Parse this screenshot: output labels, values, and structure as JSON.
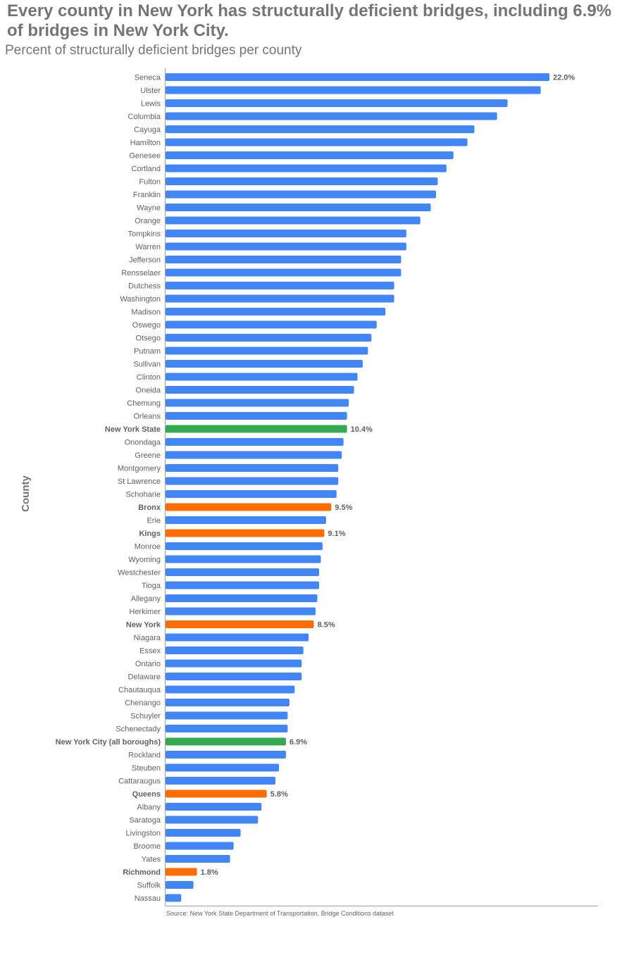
{
  "chart_data": {
    "type": "bar",
    "orientation": "horizontal",
    "title": "Every county in New York has structurally deficient bridges, including 6.9% of bridges in New York City.",
    "subtitle": "Percent of structurally deficient bridges per county",
    "ylabel": "County",
    "xlabel": "",
    "source": "Source: New York State Department of Transportation, Bridge Conditions dataset",
    "xlim": [
      0,
      24.8
    ],
    "grid": false,
    "colors": {
      "county": "#4285f4",
      "aggregate": "#34a853",
      "nyc_borough": "#ff6d00"
    },
    "categories": [
      "Seneca",
      "Ulster",
      "Lewis",
      "Columbia",
      "Cayuga",
      "Hamilton",
      "Genesee",
      "Cortland",
      "Fulton",
      "Franklin",
      "Wayne",
      "Orange",
      "Tompkins",
      "Warren",
      "Jefferson",
      "Rensselaer",
      "Dutchess",
      "Washington",
      "Madison",
      "Oswego",
      "Otsego",
      "Putnam",
      "Sullivan",
      "Clinton",
      "Oneida",
      "Chemung",
      "Orleans",
      "New York State",
      "Onondaga",
      "Greene",
      "Montgomery",
      "St Lawrence",
      "Schoharie",
      "Bronx",
      "Erie",
      "Kings",
      "Monroe",
      "Wyoming",
      "Westchester",
      "Tioga",
      "Allegany",
      "Herkimer",
      "New York",
      "Niagara",
      "Essex",
      "Ontario",
      "Delaware",
      "Chautauqua",
      "Chenango",
      "Schuyler",
      "Schenectady",
      "New York City (all boroughs)",
      "Rockland",
      "Steuben",
      "Cattaraugus",
      "Queens",
      "Albany",
      "Saratoga",
      "Livingston",
      "Broome",
      "Yates",
      "Richmond",
      "Suffolk",
      "Nassau"
    ],
    "values": [
      22.0,
      21.5,
      19.6,
      19.0,
      17.7,
      17.3,
      16.5,
      16.1,
      15.6,
      15.5,
      15.2,
      14.6,
      13.8,
      13.8,
      13.5,
      13.5,
      13.1,
      13.1,
      12.6,
      12.1,
      11.8,
      11.6,
      11.3,
      11.0,
      10.8,
      10.5,
      10.4,
      10.4,
      10.2,
      10.1,
      9.9,
      9.9,
      9.8,
      9.5,
      9.2,
      9.1,
      9.0,
      8.9,
      8.8,
      8.8,
      8.7,
      8.6,
      8.5,
      8.2,
      7.9,
      7.8,
      7.8,
      7.4,
      7.1,
      7.0,
      7.0,
      6.9,
      6.9,
      6.5,
      6.3,
      5.8,
      5.5,
      5.3,
      4.3,
      3.9,
      3.7,
      1.8,
      1.6,
      0.9
    ],
    "groups": [
      "county",
      "county",
      "county",
      "county",
      "county",
      "county",
      "county",
      "county",
      "county",
      "county",
      "county",
      "county",
      "county",
      "county",
      "county",
      "county",
      "county",
      "county",
      "county",
      "county",
      "county",
      "county",
      "county",
      "county",
      "county",
      "county",
      "county",
      "aggregate",
      "county",
      "county",
      "county",
      "county",
      "county",
      "nyc_borough",
      "county",
      "nyc_borough",
      "county",
      "county",
      "county",
      "county",
      "county",
      "county",
      "nyc_borough",
      "county",
      "county",
      "county",
      "county",
      "county",
      "county",
      "county",
      "county",
      "aggregate",
      "county",
      "county",
      "county",
      "nyc_borough",
      "county",
      "county",
      "county",
      "county",
      "county",
      "nyc_borough",
      "county",
      "county"
    ],
    "data_labels": {
      "Seneca": "22.0%",
      "New York State": "10.4%",
      "Bronx": "9.5%",
      "Kings": "9.1%",
      "New York": "8.5%",
      "New York City (all boroughs)": "6.9%",
      "Queens": "5.8%",
      "Richmond": "1.8%"
    },
    "bold_categories": [
      "New York State",
      "Bronx",
      "Kings",
      "New York",
      "New York City (all boroughs)",
      "Queens",
      "Richmond"
    ]
  }
}
